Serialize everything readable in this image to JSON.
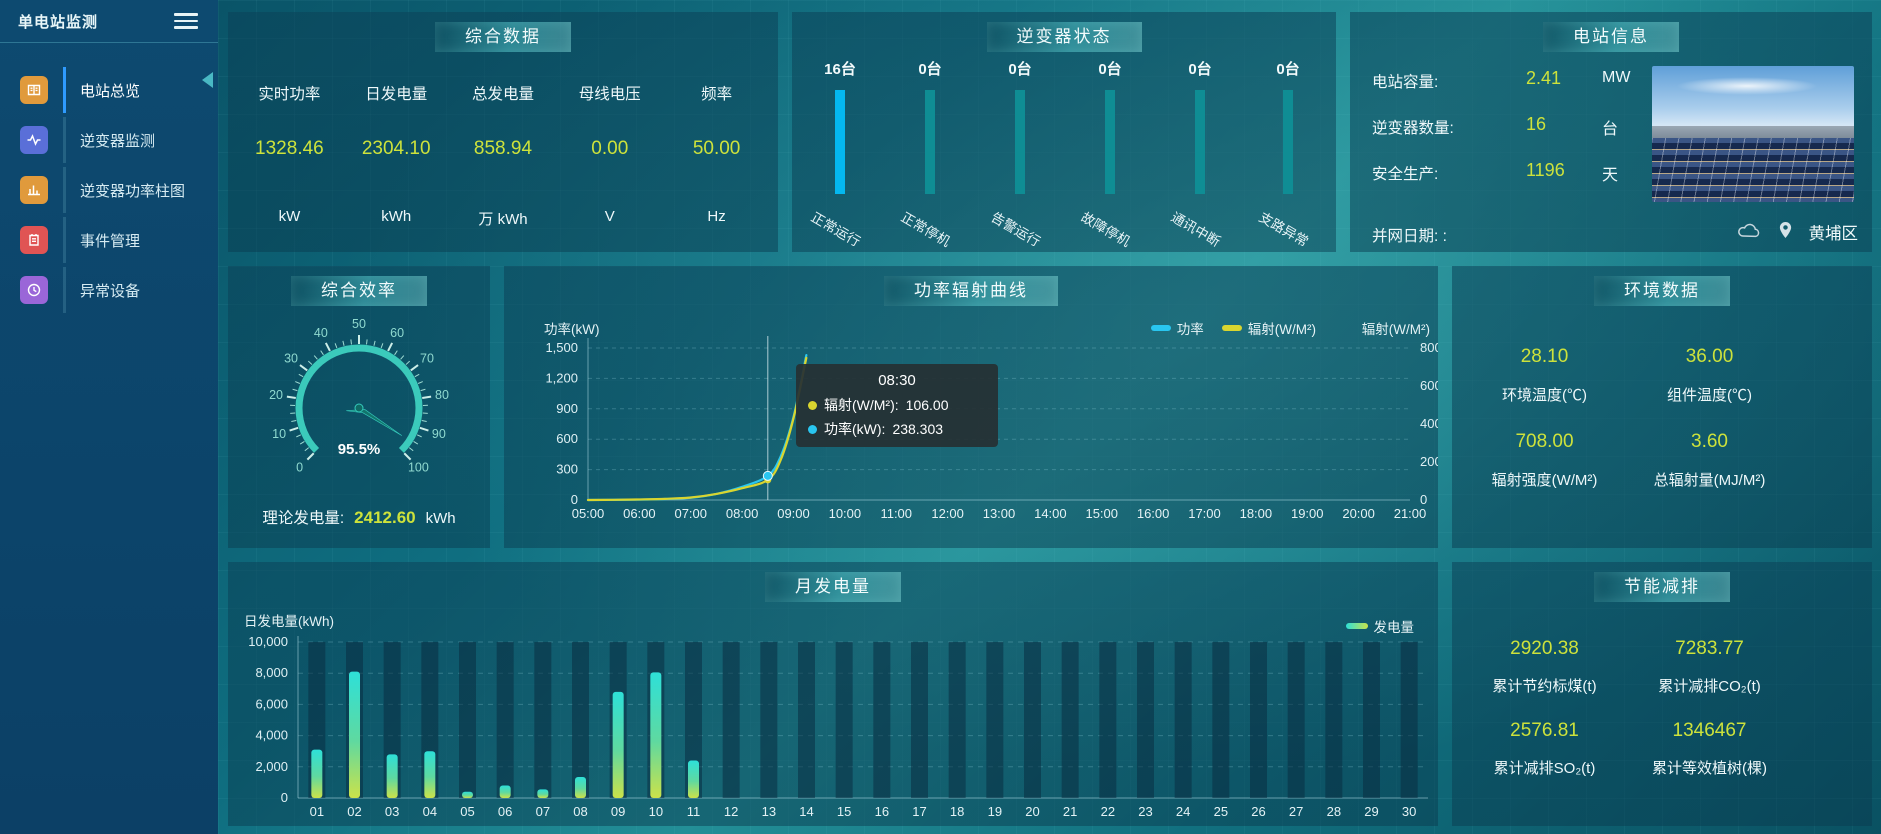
{
  "app": {
    "title": "单电站监测"
  },
  "sidebar": {
    "items": [
      {
        "label": "电站总览",
        "icon_color": "#e09a3c",
        "active": true
      },
      {
        "label": "逆变器监测",
        "icon_color": "#5a6fd8"
      },
      {
        "label": "逆变器功率柱图",
        "icon_color": "#e09a3c"
      },
      {
        "label": "事件管理",
        "icon_color": "#e05454"
      },
      {
        "label": "异常设备",
        "icon_color": "#9a66d8"
      }
    ]
  },
  "summary": {
    "title": "综合数据",
    "metrics": [
      {
        "label": "实时功率",
        "value": "1328.46",
        "unit": "kW"
      },
      {
        "label": "日发电量",
        "value": "2304.10",
        "unit": "kWh"
      },
      {
        "label": "总发电量",
        "value": "858.94",
        "unit": "万 kWh"
      },
      {
        "label": "母线电压",
        "value": "0.00",
        "unit": "V"
      },
      {
        "label": "频率",
        "value": "50.00",
        "unit": "Hz"
      }
    ]
  },
  "inverter": {
    "title": "逆变器状态",
    "items": [
      {
        "count": "16台",
        "label": "正常运行",
        "color": "#04b8f0"
      },
      {
        "count": "0台",
        "label": "正常停机",
        "color": "#0f8d94"
      },
      {
        "count": "0台",
        "label": "告警运行",
        "color": "#0f8d94"
      },
      {
        "count": "0台",
        "label": "故障停机",
        "color": "#0f8d94"
      },
      {
        "count": "0台",
        "label": "通讯中断",
        "color": "#0f8d94"
      },
      {
        "count": "0台",
        "label": "支路异常",
        "color": "#0f8d94"
      }
    ]
  },
  "station": {
    "title": "电站信息",
    "rows": [
      {
        "label": "电站容量:",
        "value": "2.41",
        "unit": "MW"
      },
      {
        "label": "逆变器数量:",
        "value": "16",
        "unit": "台"
      },
      {
        "label": "安全生产:",
        "value": "1196",
        "unit": "天"
      }
    ],
    "grid_date_label": "并网日期: :",
    "location": "黄埔区"
  },
  "efficiency": {
    "title": "综合效率",
    "display": "95.5%",
    "theory_label": "理论发电量:",
    "theory_value": "2412.60",
    "theory_unit": "kWh"
  },
  "power_curve": {
    "title": "功率辐射曲线",
    "y_left_label": "功率(kW)",
    "y_right_label": "辐射(W/M²)",
    "legend": [
      {
        "label": "功率",
        "color": "#29c6f0"
      },
      {
        "label": "辐射(W/M²)",
        "color": "#d9d52f"
      }
    ],
    "tooltip": {
      "time": "08:30",
      "rows": [
        {
          "label": "辐射(W/M²):",
          "value": "106.00",
          "color": "#d9d52f"
        },
        {
          "label": "功率(kW):",
          "value": "238.303",
          "color": "#29c6f0"
        }
      ]
    }
  },
  "environment": {
    "title": "环境数据",
    "metrics": [
      {
        "value": "28.10",
        "label": "环境温度(℃)"
      },
      {
        "value": "36.00",
        "label": "组件温度(℃)"
      },
      {
        "value": "708.00",
        "label": "辐射强度(W/M²)"
      },
      {
        "value": "3.60",
        "label": "总辐射量(MJ/M²)"
      }
    ]
  },
  "monthly": {
    "title": "月发电量",
    "y_label": "日发电量(kWh)",
    "legend": "发电量"
  },
  "savings": {
    "title": "节能减排",
    "metrics": [
      {
        "value": "2920.38",
        "label": "累计节约标煤(t)"
      },
      {
        "value": "7283.77",
        "label": "累计减排CO₂(t)"
      },
      {
        "value": "2576.81",
        "label": "累计减排SO₂(t)"
      },
      {
        "value": "1346467",
        "label": "累计等效植树(棵)"
      }
    ]
  },
  "chart_data": [
    {
      "id": "efficiency_gauge",
      "type": "gauge",
      "title": "综合效率",
      "min": 0,
      "max": 100,
      "value": 95.5,
      "unit": "%",
      "tick_labels": [
        "0",
        "10",
        "20",
        "30",
        "40",
        "50",
        "60",
        "70",
        "80",
        "90",
        "100"
      ],
      "arc_color": "#3bcabb",
      "needle_color": "#12756d"
    },
    {
      "id": "power_radiation",
      "type": "line",
      "title": "功率辐射曲线",
      "x": [
        "05:00",
        "06:00",
        "07:00",
        "08:00",
        "09:00",
        "10:00",
        "11:00",
        "12:00",
        "13:00",
        "14:00",
        "15:00",
        "16:00",
        "17:00",
        "18:00",
        "19:00",
        "20:00",
        "21:00"
      ],
      "y_left": {
        "label": "功率(kW)",
        "ticks": [
          0,
          300,
          600,
          900,
          1200,
          1500
        ],
        "tick_labels": [
          "0",
          "300",
          "600",
          "900",
          "1,200",
          "1,500"
        ],
        "max": 1500
      },
      "y_right": {
        "label": "辐射(W/M²)",
        "ticks": [
          0,
          200,
          400,
          600,
          800
        ],
        "tick_labels": [
          "0",
          "200",
          "400",
          "600",
          "800"
        ],
        "max": 800
      },
      "series": [
        {
          "name": "功率",
          "axis": "left",
          "color": "#29c6f0",
          "points": [
            [
              "05:00",
              0
            ],
            [
              "05:30",
              1
            ],
            [
              "06:00",
              4
            ],
            [
              "06:30",
              10
            ],
            [
              "07:00",
              22
            ],
            [
              "07:30",
              60
            ],
            [
              "08:00",
              130
            ],
            [
              "08:30",
              238.303
            ],
            [
              "08:45",
              430
            ],
            [
              "09:00",
              820
            ],
            [
              "09:15",
              1430
            ]
          ]
        },
        {
          "name": "辐射(W/M²)",
          "axis": "right",
          "color": "#d9d52f",
          "points": [
            [
              "05:00",
              0
            ],
            [
              "05:30",
              1
            ],
            [
              "06:00",
              3
            ],
            [
              "06:30",
              6
            ],
            [
              "07:00",
              13
            ],
            [
              "07:30",
              32
            ],
            [
              "08:00",
              62
            ],
            [
              "08:30",
              106
            ],
            [
              "08:45",
              210
            ],
            [
              "09:00",
              430
            ],
            [
              "09:15",
              748
            ]
          ]
        }
      ],
      "hover": {
        "x": "08:30",
        "power": 238.303,
        "radiation": 106.0
      }
    },
    {
      "id": "monthly_energy",
      "type": "bar",
      "title": "月发电量",
      "ylabel": "日发电量(kWh)",
      "ylim": [
        0,
        10000
      ],
      "ytick_labels": [
        "0",
        "2,000",
        "4,000",
        "6,000",
        "8,000",
        "10,000"
      ],
      "categories": [
        "01",
        "02",
        "03",
        "04",
        "05",
        "06",
        "07",
        "08",
        "09",
        "10",
        "11",
        "12",
        "13",
        "14",
        "15",
        "16",
        "17",
        "18",
        "19",
        "20",
        "21",
        "22",
        "23",
        "24",
        "25",
        "26",
        "27",
        "28",
        "29",
        "30"
      ],
      "values": [
        3100,
        8100,
        2800,
        3000,
        400,
        800,
        550,
        1350,
        6800,
        8050,
        2400,
        0,
        0,
        0,
        0,
        0,
        0,
        0,
        0,
        0,
        0,
        0,
        0,
        0,
        0,
        0,
        0,
        0,
        0,
        0
      ],
      "legend": "发电量",
      "color_top": "#2ee0d8",
      "color_bottom": "#cbe24a"
    }
  ]
}
